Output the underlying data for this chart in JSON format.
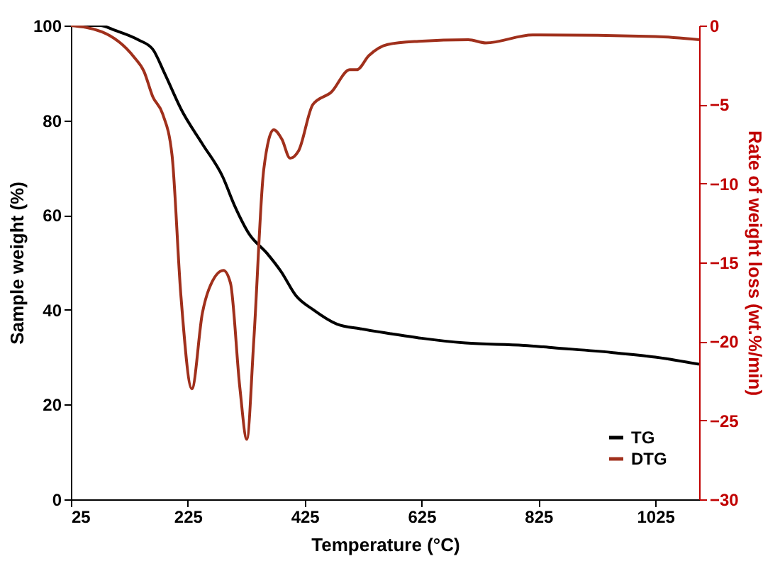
{
  "chart_data": {
    "type": "line",
    "xlabel": "Temperature (°C)",
    "ylabel": "Sample weight (%)",
    "y2label": "Rate of weight loss (wt.%/min)",
    "xlim": [
      25,
      1100
    ],
    "xticks": [
      25,
      225,
      425,
      625,
      825,
      1025
    ],
    "ylim": [
      0,
      100
    ],
    "yticks": [
      0,
      20,
      40,
      60,
      80,
      100
    ],
    "y2lim": [
      -30,
      0
    ],
    "y2ticks": [
      -30,
      -25,
      -20,
      -15,
      -10,
      -5,
      0
    ],
    "grid": false,
    "legend": "bottom right",
    "marker": "none",
    "line_style": "solid",
    "series": [
      {
        "name": "TG",
        "color": "#000000",
        "x": [
          25,
          75,
          100,
          140,
          165,
          185,
          215,
          250,
          285,
          305,
          330,
          360,
          385,
          410,
          440,
          480,
          520,
          570,
          625,
          700,
          800,
          850,
          950,
          1025,
          1100
        ],
        "values": [
          100,
          100,
          99,
          97,
          95,
          90,
          82,
          75,
          68,
          62,
          56,
          52,
          48,
          43,
          40,
          37,
          36,
          35,
          34,
          33,
          32.5,
          32,
          31,
          30,
          28.5
        ]
      },
      {
        "name": "DTG",
        "color": "#a0301c",
        "axis": "y2",
        "x": [
          25,
          78,
          133,
          150,
          165,
          182,
          198,
          213,
          232,
          250,
          261,
          286,
          298,
          314,
          326,
          338,
          355,
          372,
          386,
          400,
          415,
          439,
          471,
          502,
          514,
          535,
          567,
          620,
          705,
          735,
          815,
          1025,
          1100
        ],
        "values": [
          0,
          -0.4,
          -2,
          -2.9,
          -4.5,
          -5.6,
          -8.2,
          -17,
          -23,
          -18.2,
          -16.7,
          -15.5,
          -16.3,
          -22.9,
          -26.2,
          -19.9,
          -9.1,
          -6.6,
          -7.2,
          -8.4,
          -7.9,
          -5,
          -4.2,
          -2.8,
          -2.8,
          -1.9,
          -1.2,
          -1,
          -0.9,
          -1.1,
          -0.6,
          -0.7,
          -0.9
        ]
      }
    ]
  }
}
